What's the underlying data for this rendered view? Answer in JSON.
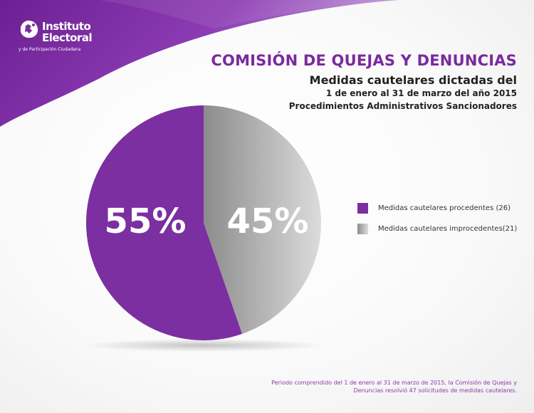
{
  "logo": {
    "small_text": "Instituto",
    "line1": "Instituto",
    "line2": "Electoral",
    "tagline": "y de Participación Ciudadana",
    "icon": "institute-emblem-icon"
  },
  "header": {
    "title": "COMISIÓN DE QUEJAS Y DENUNCIAS",
    "subtitle": "Medidas cautelares dictadas del",
    "date_range": "1 de enero al 31 de marzo del año 2015",
    "procedure": "Procedimientos Administrativos Sancionadores"
  },
  "chart_data": {
    "type": "pie",
    "slices": [
      {
        "label": "Medidas cautelares procedentes (26)",
        "value": 26,
        "percent_label": "55%",
        "color": "#7b2fa0"
      },
      {
        "label": "Medidas cautelares improcedentes(21)",
        "value": 21,
        "percent_label": "45%",
        "color": "#9a9a9a"
      }
    ],
    "legend_position": "right"
  },
  "footnote": {
    "line1": "Periodo comprendido del 1 de enero al 31 de marzo de 2015, la Comisión de Quejas y",
    "line2": "Denuncias resolvió 47 solicitudes de medidas cautelares."
  },
  "colors": {
    "brand_purple": "#7a2a9e",
    "accent_purple": "#8a3aab",
    "gray_light": "#d9d9d9",
    "gray_dark": "#8c8c8c"
  }
}
